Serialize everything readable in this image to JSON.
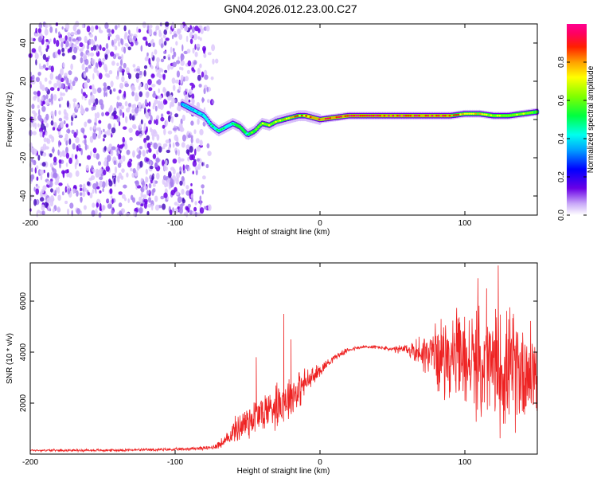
{
  "title": "GN04.2026.012.23.00.C27",
  "chart_data": [
    {
      "type": "heatmap",
      "xlabel": "Height of straight line (km)",
      "ylabel": "Frequency (Hz)",
      "xlim": [
        -200,
        150
      ],
      "ylim": [
        -50,
        50
      ],
      "xticks": [
        -200,
        -100,
        0,
        100
      ],
      "yticks": [
        -40,
        -20,
        0,
        20,
        40
      ],
      "colorbar": {
        "label": "Normalized spectral amplitude",
        "range": [
          0,
          1
        ],
        "ticks": [
          "0.0",
          "0.2",
          "0.4",
          "0.6",
          "0.8"
        ]
      },
      "noise_region_x": [
        -200,
        -70
      ],
      "ridge": {
        "x": [
          -95,
          -90,
          -85,
          -80,
          -75,
          -70,
          -65,
          -60,
          -55,
          -50,
          -45,
          -40,
          -35,
          -30,
          -25,
          -20,
          -15,
          -10,
          -5,
          0,
          10,
          20,
          30,
          40,
          50,
          60,
          70,
          80,
          90,
          100,
          110,
          120,
          130,
          140,
          150
        ],
        "y": [
          8,
          6,
          4,
          2,
          -3,
          -6,
          -4,
          -2,
          -4,
          -8,
          -6,
          -2,
          -3,
          -1,
          0,
          1,
          2,
          2,
          1,
          0,
          1,
          2,
          2,
          2,
          2,
          2,
          2,
          2,
          2,
          3,
          3,
          2,
          2,
          3,
          4
        ],
        "amplitude": [
          0.3,
          0.35,
          0.4,
          0.45,
          0.45,
          0.5,
          0.5,
          0.55,
          0.6,
          0.55,
          0.6,
          0.65,
          0.7,
          0.75,
          0.8,
          0.85,
          0.9,
          0.9,
          0.95,
          0.95,
          1.0,
          1.0,
          1.0,
          1.0,
          1.0,
          1.0,
          1.0,
          0.95,
          0.9,
          0.85,
          0.8,
          0.75,
          0.7,
          0.65,
          0.6
        ]
      }
    },
    {
      "type": "line",
      "xlabel": "Height of straight line (km)",
      "ylabel": "SNR (10 * v/v)",
      "xlim": [
        -200,
        150
      ],
      "ylim": [
        0,
        7500
      ],
      "xticks": [
        -200,
        -100,
        0,
        100
      ],
      "yticks": [
        2000,
        4000,
        6000
      ],
      "series": [
        {
          "name": "SNR",
          "color": "#ee2222",
          "x": [
            -200,
            -150,
            -100,
            -75,
            -65,
            -60,
            -55,
            -50,
            -45,
            -40,
            -35,
            -30,
            -25,
            -20,
            -15,
            -10,
            -5,
            0,
            10,
            20,
            30,
            40,
            50,
            60,
            70,
            80,
            90,
            100,
            110,
            120,
            130,
            140,
            150
          ],
          "baseline": [
            150,
            150,
            180,
            250,
            500,
            900,
            1100,
            1300,
            1500,
            1600,
            1800,
            2000,
            2100,
            2300,
            2500,
            2800,
            3000,
            3300,
            3800,
            4100,
            4200,
            4200,
            4100,
            4100,
            4000,
            3900,
            3800,
            3700,
            3500,
            3400,
            3300,
            3300,
            3300
          ],
          "spread": [
            50,
            60,
            70,
            100,
            300,
            500,
            800,
            1000,
            900,
            1000,
            900,
            1200,
            1000,
            1100,
            900,
            700,
            500,
            300,
            150,
            100,
            80,
            80,
            120,
            300,
            800,
            1500,
            2000,
            2200,
            2500,
            2800,
            2800,
            2600,
            2400
          ],
          "peaks": [
            [
              -44,
              3800
            ],
            [
              -25,
              5500
            ],
            [
              -20,
              4500
            ],
            [
              123,
              7400
            ],
            [
              109,
              6900
            ],
            [
              115,
              6500
            ]
          ]
        }
      ]
    }
  ]
}
